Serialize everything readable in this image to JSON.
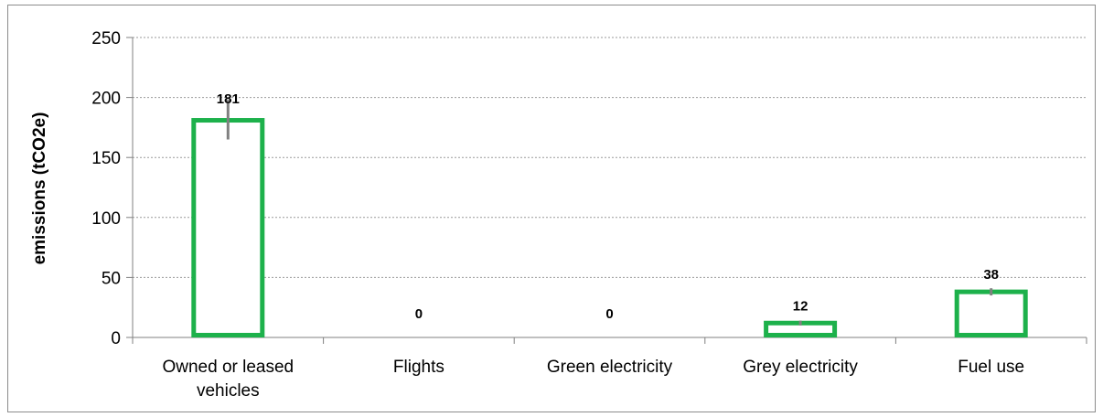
{
  "chart_data": {
    "type": "bar",
    "title": "",
    "xlabel": "",
    "ylabel": "emissions (tCO2e)",
    "categories": [
      [
        "Owned or leased",
        "vehicles"
      ],
      [
        "Flights"
      ],
      [
        "Green electricity"
      ],
      [
        "Grey electricity"
      ],
      [
        "Fuel use"
      ]
    ],
    "values": [
      181,
      0,
      0,
      12,
      38
    ],
    "data_labels": [
      "181",
      "0",
      "0",
      "12",
      "38"
    ],
    "error_bars": [
      {
        "low": 165,
        "high": 198
      },
      null,
      null,
      {
        "low": 10,
        "high": 14
      },
      {
        "low": 35,
        "high": 41
      }
    ],
    "ylim": [
      0,
      250
    ],
    "yticks": [
      0,
      50,
      100,
      150,
      200,
      250
    ],
    "grid": true,
    "legend": "none",
    "colors": {
      "bar_outline": "#1db14b",
      "bar_fill": "#ffffff",
      "error_bar": "#808080",
      "grid": "#9a9a9a",
      "axis": "#808080",
      "frame": "#8c8c8c"
    }
  }
}
